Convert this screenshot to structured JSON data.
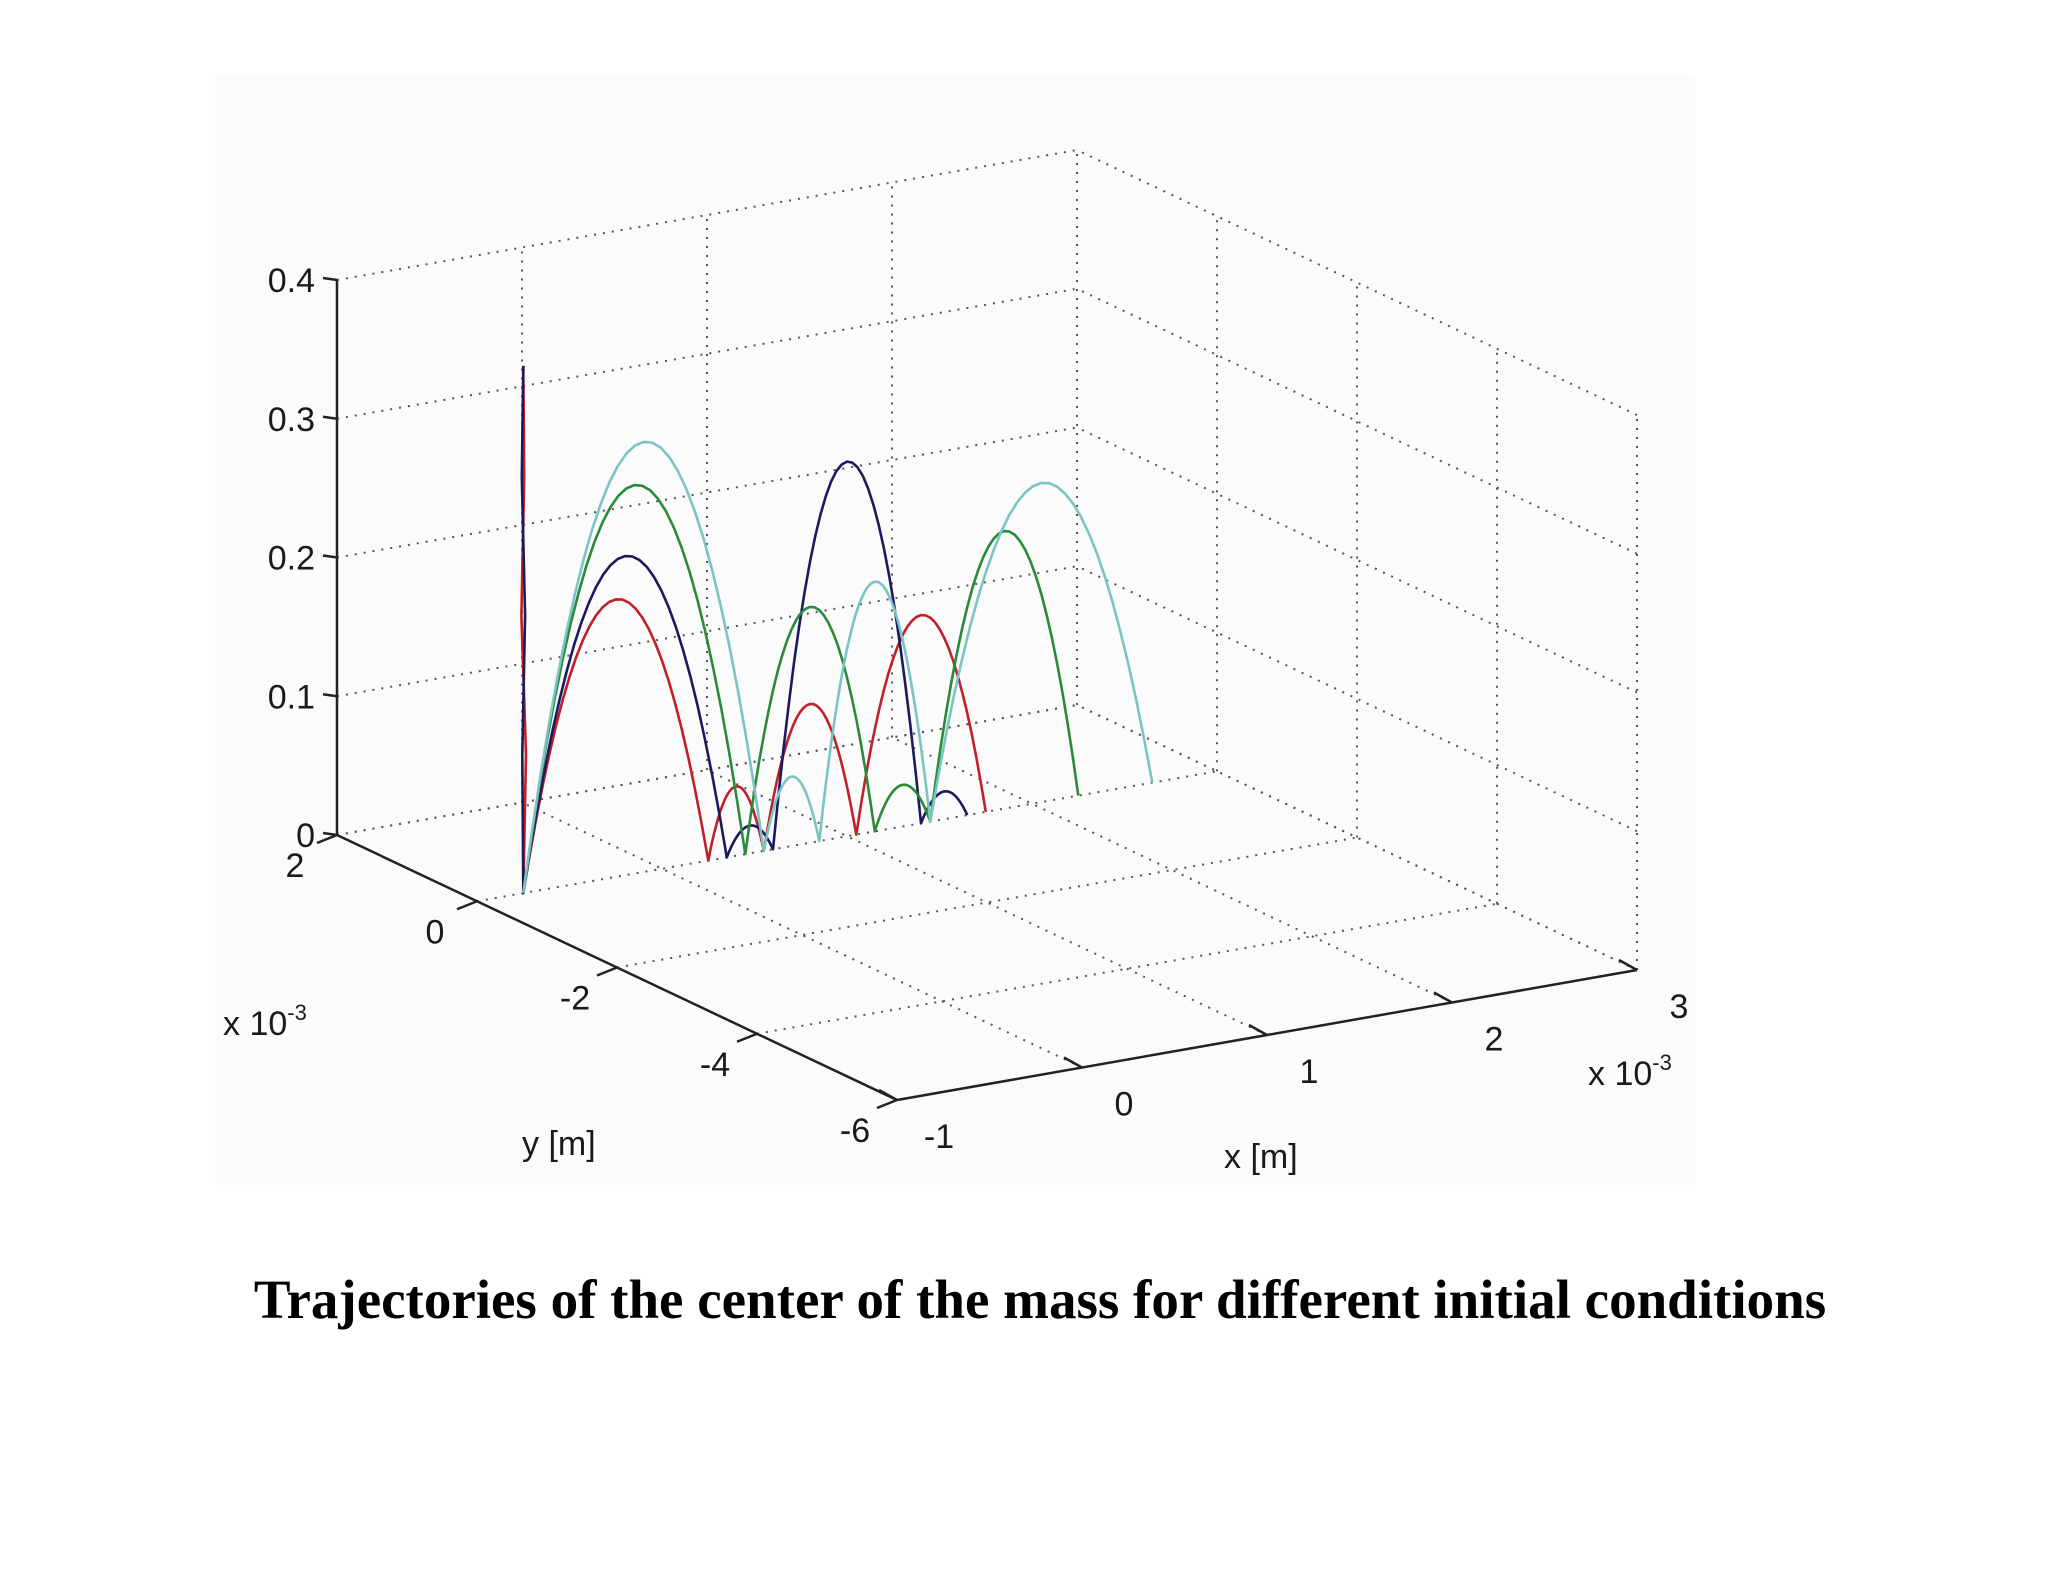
{
  "caption": "Trajectories of the center of the mass for different initial conditions",
  "chart_data": {
    "type": "line",
    "projection": "3d",
    "title": "",
    "xlabel": "x [m]",
    "ylabel": "y [m]",
    "zlabel": "",
    "x_multiplier": "x 10",
    "x_multiplier_exp": "-3",
    "y_multiplier": "x 10",
    "y_multiplier_exp": "-3",
    "xlim": [
      -1,
      3
    ],
    "ylim": [
      -6,
      2
    ],
    "zlim": [
      0,
      0.4
    ],
    "x_ticks": [
      "-1",
      "0",
      "1",
      "2",
      "3"
    ],
    "y_ticks": [
      "-6",
      "-4",
      "-2",
      "0",
      "2"
    ],
    "z_ticks": [
      "0",
      "0.1",
      "0.2",
      "0.3",
      "0.4"
    ],
    "grid": true,
    "series": [
      {
        "color": "#c0202a",
        "points": [
          [
            -0.75,
            0,
            0.38
          ],
          [
            -0.745,
            0,
            0.3
          ],
          [
            -0.76,
            0,
            0.2
          ],
          [
            -0.735,
            0,
            0.1
          ],
          [
            -0.75,
            0,
            0
          ],
          [
            -0.25,
            0,
            0.2
          ],
          [
            0.25,
            0,
            0
          ],
          [
            0.4,
            0,
            0.05
          ],
          [
            0.55,
            0,
            0
          ],
          [
            0.8,
            0,
            0.1
          ],
          [
            1.05,
            0,
            0
          ],
          [
            1.4,
            0,
            0.15
          ],
          [
            1.75,
            0,
            0
          ]
        ]
      },
      {
        "color": "#1a1a5e",
        "points": [
          [
            -0.75,
            0,
            0.38
          ],
          [
            -0.758,
            0,
            0.3
          ],
          [
            -0.74,
            0,
            0.2
          ],
          [
            -0.755,
            0,
            0.1
          ],
          [
            -0.75,
            0,
            0
          ],
          [
            -0.2,
            0,
            0.23
          ],
          [
            0.35,
            0,
            0
          ],
          [
            0.48,
            0,
            0.02
          ],
          [
            0.6,
            0,
            0
          ],
          [
            1.0,
            0,
            0.27
          ],
          [
            1.4,
            0,
            0
          ],
          [
            1.52,
            0,
            0.02
          ],
          [
            1.65,
            0,
            0
          ]
        ]
      },
      {
        "color": "#2a8a3a",
        "points": [
          [
            -0.75,
            0,
            0
          ],
          [
            -0.15,
            0,
            0.28
          ],
          [
            0.45,
            0,
            0
          ],
          [
            0.8,
            0,
            0.17
          ],
          [
            1.15,
            0,
            0
          ],
          [
            1.3,
            0,
            0.03
          ],
          [
            1.45,
            0,
            0
          ],
          [
            1.85,
            0,
            0.2
          ],
          [
            2.25,
            0,
            0
          ]
        ]
      },
      {
        "color": "#7cc4c4",
        "points": [
          [
            -0.75,
            0,
            0
          ],
          [
            -0.1,
            0,
            0.31
          ],
          [
            0.55,
            0,
            0
          ],
          [
            0.7,
            0,
            0.05
          ],
          [
            0.85,
            0,
            0
          ],
          [
            1.15,
            0,
            0.18
          ],
          [
            1.45,
            0,
            0
          ],
          [
            2.05,
            0,
            0.23
          ],
          [
            2.65,
            0,
            0
          ]
        ]
      }
    ]
  }
}
